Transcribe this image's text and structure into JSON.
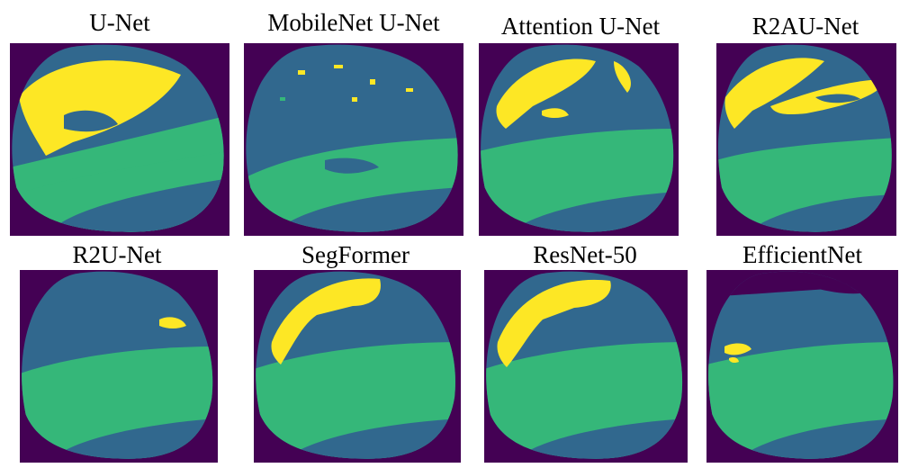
{
  "colors": {
    "background": "#440154",
    "class_blue": "#31688E",
    "class_green": "#35B779",
    "class_yellow": "#FDE725"
  },
  "panels": [
    {
      "title": "U-Net"
    },
    {
      "title": "MobileNet U-Net"
    },
    {
      "title": "Attention U-Net"
    },
    {
      "title": "R2AU-Net"
    },
    {
      "title": "R2U-Net"
    },
    {
      "title": "SegFormer"
    },
    {
      "title": "ResNet-50"
    },
    {
      "title": "EfficientNet"
    }
  ]
}
